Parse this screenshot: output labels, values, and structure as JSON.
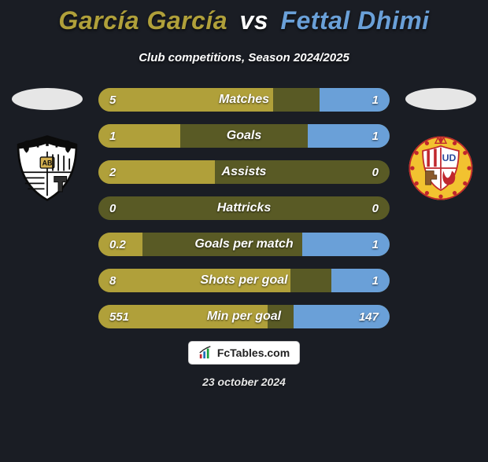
{
  "title": {
    "player1": "García García",
    "vs": "vs",
    "player2": "Fettal Dhimi",
    "player1_color": "#b0a03a",
    "vs_color": "#ffffff",
    "player2_color": "#6aa0d8"
  },
  "subtitle": "Club competitions, Season 2024/2025",
  "colors": {
    "background": "#1a1d24",
    "row_base": "#595a25",
    "bar_left": "#b0a03a",
    "bar_right": "#6aa0d8",
    "disc_left": "#e6e6e6",
    "disc_right": "#e6e6e6",
    "text": "#ffffff",
    "albacete_bg": "#ffffff",
    "albacete_stroke": "#0b0b0b",
    "almeria_outer": "#f2c230",
    "almeria_red": "#c0272d",
    "almeria_white": "#ffffff",
    "almeria_blue": "#2b4a9b"
  },
  "stats": [
    {
      "label": "Matches",
      "left_val": "5",
      "right_val": "1",
      "left_pct": 60,
      "right_pct": 24
    },
    {
      "label": "Goals",
      "left_val": "1",
      "right_val": "1",
      "left_pct": 28,
      "right_pct": 28
    },
    {
      "label": "Assists",
      "left_val": "2",
      "right_val": "0",
      "left_pct": 40,
      "right_pct": 0
    },
    {
      "label": "Hattricks",
      "left_val": "0",
      "right_val": "0",
      "left_pct": 0,
      "right_pct": 0
    },
    {
      "label": "Goals per match",
      "left_val": "0.2",
      "right_val": "1",
      "left_pct": 15,
      "right_pct": 30
    },
    {
      "label": "Shots per goal",
      "left_val": "8",
      "right_val": "1",
      "left_pct": 66,
      "right_pct": 20
    },
    {
      "label": "Min per goal",
      "left_val": "551",
      "right_val": "147",
      "left_pct": 58,
      "right_pct": 33
    }
  ],
  "brand": "FcTables.com",
  "date": "23 october 2024"
}
